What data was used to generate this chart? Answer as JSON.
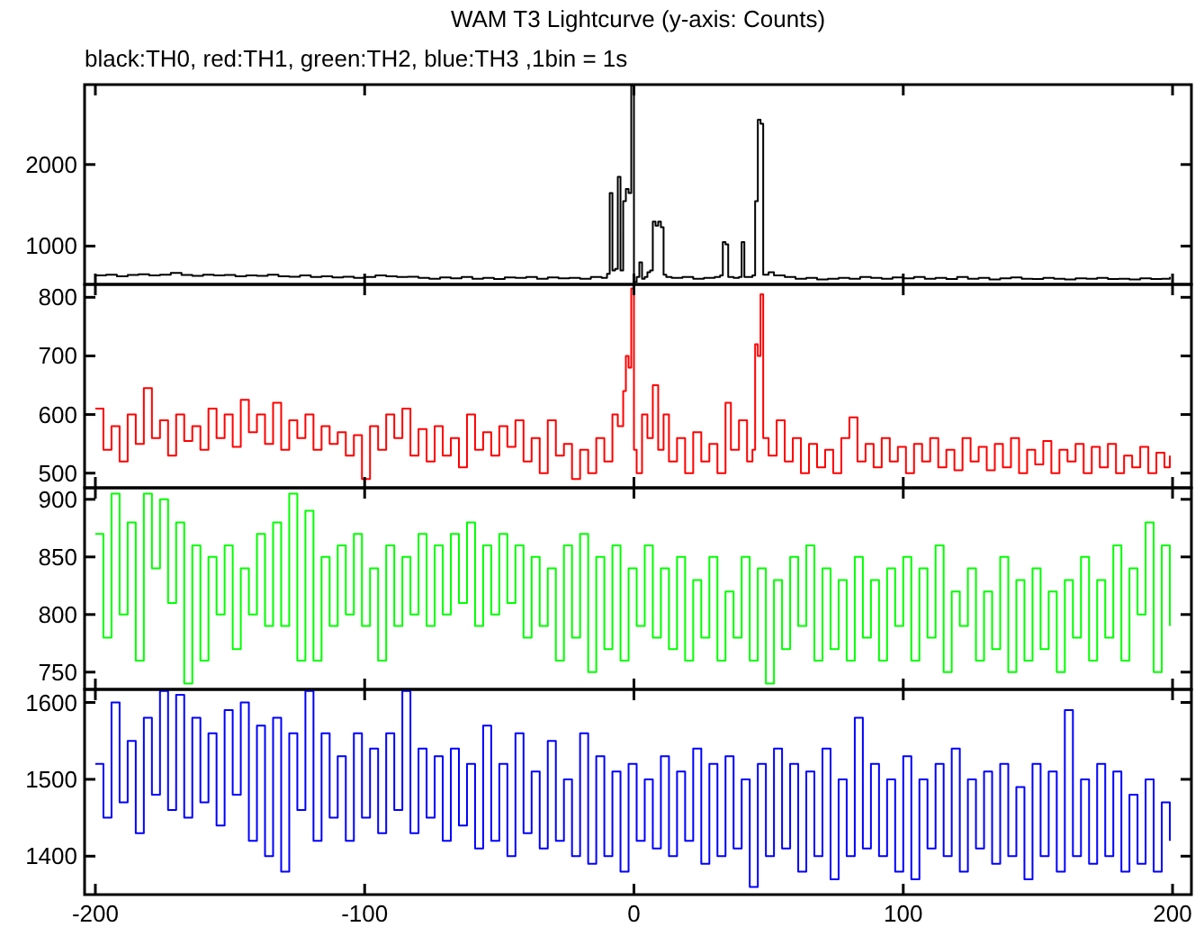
{
  "chart_data": [
    {
      "type": "step",
      "title": "WAM T3 Lightcurve (y-axis: Counts)",
      "subtitle": "black:TH0, red:TH1, green:TH2, blue:TH3 ,1bin = 1s",
      "xlim": [
        -204,
        207
      ],
      "ylim": [
        530,
        2980
      ],
      "xticks": [
        -200,
        -100,
        0,
        100,
        200
      ],
      "yticks": [
        1000,
        2000
      ],
      "tick_labels": "y",
      "x": [
        -200,
        -196,
        -192,
        -188,
        -184,
        -180,
        -176,
        -172,
        -168,
        -164,
        -160,
        -156,
        -152,
        -148,
        -144,
        -140,
        -136,
        -132,
        -128,
        -124,
        -120,
        -116,
        -112,
        -108,
        -104,
        -100,
        -96,
        -92,
        -88,
        -84,
        -80,
        -76,
        -72,
        -68,
        -64,
        -60,
        -56,
        -52,
        -48,
        -44,
        -40,
        -36,
        -32,
        -28,
        -24,
        -20,
        -16,
        -12,
        -10,
        -9,
        -8,
        -7,
        -6,
        -5,
        -4,
        -3,
        -2,
        -1,
        0,
        1,
        2,
        3,
        4,
        5,
        6,
        7,
        8,
        9,
        10,
        11,
        12,
        14,
        18,
        22,
        26,
        30,
        32,
        33,
        34,
        35,
        37,
        39,
        40,
        41,
        43,
        44,
        45,
        46,
        47,
        48,
        50,
        52,
        56,
        60,
        64,
        68,
        72,
        76,
        80,
        84,
        88,
        92,
        96,
        100,
        104,
        108,
        112,
        116,
        120,
        124,
        128,
        132,
        136,
        140,
        144,
        148,
        152,
        156,
        160,
        164,
        168,
        172,
        176,
        180,
        184,
        188,
        192,
        196,
        199
      ],
      "series": [
        {
          "color": "#000000",
          "values": [
            640,
            650,
            630,
            645,
            655,
            640,
            650,
            670,
            645,
            635,
            650,
            640,
            645,
            630,
            640,
            635,
            650,
            630,
            625,
            640,
            620,
            630,
            615,
            625,
            610,
            620,
            640,
            630,
            620,
            625,
            610,
            600,
            615,
            605,
            620,
            600,
            610,
            595,
            615,
            610,
            620,
            600,
            615,
            605,
            610,
            600,
            620,
            610,
            660,
            1650,
            700,
            720,
            1850,
            700,
            1550,
            1700,
            1650,
            2970,
            560,
            620,
            800,
            600,
            620,
            680,
            700,
            1300,
            1250,
            1300,
            1230,
            650,
            620,
            610,
            620,
            600,
            610,
            620,
            640,
            1050,
            1020,
            620,
            610,
            620,
            1050,
            620,
            620,
            640,
            1550,
            2550,
            2500,
            650,
            680,
            640,
            620,
            600,
            610,
            590,
            600,
            610,
            600,
            620,
            610,
            600,
            615,
            605,
            620,
            600,
            610,
            595,
            620,
            600,
            610,
            590,
            605,
            615,
            600,
            595,
            610,
            600,
            590,
            605,
            600,
            610,
            595,
            600,
            590,
            605,
            595,
            600,
            620
          ]
        }
      ]
    },
    {
      "type": "step",
      "xlim": [
        -204,
        207
      ],
      "ylim": [
        475,
        822
      ],
      "xticks": [
        -200,
        -100,
        0,
        100,
        200
      ],
      "yticks": [
        500,
        600,
        700,
        800
      ],
      "tick_labels": "y",
      "x": [
        -200,
        -197,
        -194,
        -191,
        -188,
        -185,
        -182,
        -179,
        -176,
        -173,
        -170,
        -167,
        -164,
        -161,
        -158,
        -155,
        -152,
        -149,
        -146,
        -143,
        -140,
        -137,
        -134,
        -131,
        -128,
        -125,
        -122,
        -119,
        -116,
        -113,
        -110,
        -107,
        -104,
        -101,
        -98,
        -95,
        -92,
        -89,
        -86,
        -83,
        -80,
        -77,
        -74,
        -71,
        -68,
        -65,
        -62,
        -59,
        -56,
        -53,
        -50,
        -47,
        -44,
        -41,
        -38,
        -35,
        -32,
        -29,
        -26,
        -23,
        -20,
        -17,
        -14,
        -11,
        -8,
        -6,
        -4,
        -3,
        -2,
        -1,
        0,
        1,
        3,
        5,
        7,
        9,
        11,
        13,
        16,
        19,
        22,
        25,
        28,
        31,
        34,
        36,
        39,
        42,
        44,
        45,
        46,
        47,
        48,
        50,
        53,
        56,
        59,
        62,
        65,
        68,
        71,
        74,
        77,
        80,
        83,
        86,
        89,
        92,
        95,
        98,
        101,
        104,
        107,
        110,
        113,
        116,
        119,
        122,
        125,
        128,
        131,
        134,
        137,
        140,
        143,
        146,
        149,
        152,
        155,
        158,
        161,
        164,
        167,
        170,
        173,
        176,
        179,
        182,
        185,
        188,
        191,
        194,
        197,
        199
      ],
      "series": [
        {
          "color": "#ff0000",
          "values": [
            610,
            540,
            580,
            520,
            600,
            550,
            645,
            560,
            590,
            530,
            600,
            555,
            580,
            540,
            610,
            560,
            600,
            545,
            625,
            570,
            600,
            550,
            620,
            540,
            590,
            560,
            600,
            540,
            580,
            550,
            570,
            530,
            565,
            490,
            580,
            540,
            600,
            560,
            610,
            530,
            575,
            520,
            580,
            530,
            560,
            510,
            600,
            540,
            570,
            530,
            580,
            545,
            590,
            520,
            560,
            500,
            590,
            530,
            550,
            490,
            540,
            500,
            560,
            520,
            600,
            580,
            640,
            700,
            680,
            815,
            540,
            500,
            600,
            560,
            650,
            540,
            600,
            520,
            560,
            500,
            570,
            520,
            550,
            500,
            620,
            540,
            590,
            520,
            540,
            720,
            700,
            805,
            560,
            530,
            590,
            520,
            560,
            500,
            550,
            510,
            540,
            500,
            560,
            595,
            520,
            550,
            510,
            560,
            520,
            545,
            500,
            550,
            520,
            560,
            510,
            540,
            505,
            560,
            520,
            545,
            505,
            550,
            510,
            560,
            500,
            540,
            515,
            555,
            500,
            540,
            520,
            550,
            500,
            545,
            510,
            550,
            500,
            530,
            510,
            545,
            500,
            535,
            510,
            530
          ]
        }
      ]
    },
    {
      "type": "step",
      "xlim": [
        -204,
        207
      ],
      "ylim": [
        735,
        910
      ],
      "xticks": [
        -200,
        -100,
        0,
        100,
        200
      ],
      "yticks": [
        750,
        800,
        850,
        900
      ],
      "tick_labels": "y",
      "x": [
        -200,
        -197,
        -194,
        -191,
        -188,
        -185,
        -182,
        -179,
        -176,
        -173,
        -170,
        -167,
        -164,
        -161,
        -158,
        -155,
        -152,
        -149,
        -146,
        -143,
        -140,
        -137,
        -134,
        -131,
        -128,
        -125,
        -122,
        -119,
        -116,
        -113,
        -110,
        -107,
        -104,
        -101,
        -98,
        -95,
        -92,
        -89,
        -86,
        -83,
        -80,
        -77,
        -74,
        -71,
        -68,
        -65,
        -62,
        -59,
        -56,
        -53,
        -50,
        -47,
        -44,
        -41,
        -38,
        -35,
        -32,
        -29,
        -26,
        -23,
        -20,
        -17,
        -14,
        -11,
        -8,
        -5,
        -2,
        1,
        4,
        7,
        10,
        13,
        16,
        19,
        22,
        25,
        28,
        31,
        34,
        37,
        40,
        43,
        46,
        49,
        52,
        55,
        58,
        61,
        64,
        67,
        70,
        73,
        76,
        79,
        82,
        85,
        88,
        91,
        94,
        97,
        100,
        103,
        106,
        109,
        112,
        115,
        118,
        121,
        124,
        127,
        130,
        133,
        136,
        139,
        142,
        145,
        148,
        151,
        154,
        157,
        160,
        163,
        166,
        169,
        172,
        175,
        178,
        181,
        184,
        187,
        190,
        193,
        196,
        199
      ],
      "series": [
        {
          "color": "#00ff00",
          "values": [
            870,
            780,
            905,
            800,
            880,
            760,
            905,
            840,
            900,
            810,
            880,
            740,
            860,
            760,
            850,
            800,
            860,
            770,
            840,
            800,
            870,
            790,
            880,
            790,
            905,
            760,
            890,
            760,
            850,
            790,
            860,
            800,
            870,
            790,
            840,
            760,
            860,
            790,
            850,
            800,
            870,
            790,
            860,
            800,
            870,
            810,
            880,
            790,
            860,
            800,
            870,
            810,
            860,
            780,
            850,
            790,
            840,
            760,
            860,
            780,
            870,
            750,
            850,
            770,
            860,
            760,
            840,
            790,
            860,
            780,
            840,
            770,
            850,
            760,
            830,
            780,
            850,
            760,
            820,
            780,
            850,
            760,
            840,
            740,
            830,
            770,
            850,
            790,
            860,
            760,
            840,
            770,
            830,
            760,
            850,
            780,
            830,
            760,
            840,
            790,
            850,
            760,
            840,
            780,
            860,
            750,
            820,
            790,
            840,
            760,
            820,
            770,
            850,
            750,
            830,
            760,
            840,
            770,
            820,
            750,
            830,
            780,
            850,
            760,
            830,
            780,
            860,
            760,
            840,
            800,
            880,
            750,
            860,
            790
          ]
        }
      ]
    },
    {
      "type": "step",
      "xlim": [
        -204,
        207
      ],
      "ylim": [
        1350,
        1617
      ],
      "xticks": [
        -200,
        -100,
        0,
        100,
        200
      ],
      "yticks": [
        1400,
        1500,
        1600
      ],
      "x": [
        -200,
        -197,
        -194,
        -191,
        -188,
        -185,
        -182,
        -179,
        -176,
        -173,
        -170,
        -167,
        -164,
        -161,
        -158,
        -155,
        -152,
        -149,
        -146,
        -143,
        -140,
        -137,
        -134,
        -131,
        -128,
        -125,
        -122,
        -119,
        -116,
        -113,
        -110,
        -107,
        -104,
        -101,
        -98,
        -95,
        -92,
        -89,
        -86,
        -83,
        -80,
        -77,
        -74,
        -71,
        -68,
        -65,
        -62,
        -59,
        -56,
        -53,
        -50,
        -47,
        -44,
        -41,
        -38,
        -35,
        -32,
        -29,
        -26,
        -23,
        -20,
        -17,
        -14,
        -11,
        -8,
        -5,
        -2,
        1,
        4,
        7,
        10,
        13,
        16,
        19,
        22,
        25,
        28,
        31,
        34,
        37,
        40,
        43,
        46,
        49,
        52,
        55,
        58,
        61,
        64,
        67,
        70,
        73,
        76,
        79,
        82,
        85,
        88,
        91,
        94,
        97,
        100,
        103,
        106,
        109,
        112,
        115,
        118,
        121,
        124,
        127,
        130,
        133,
        136,
        139,
        142,
        145,
        148,
        151,
        154,
        157,
        160,
        163,
        166,
        169,
        172,
        175,
        178,
        181,
        184,
        187,
        190,
        193,
        196,
        199
      ],
      "series": [
        {
          "color": "#0000ff",
          "values": [
            1520,
            1450,
            1600,
            1470,
            1550,
            1430,
            1580,
            1480,
            1615,
            1460,
            1610,
            1450,
            1580,
            1470,
            1560,
            1440,
            1590,
            1480,
            1600,
            1420,
            1570,
            1400,
            1580,
            1380,
            1560,
            1460,
            1615,
            1420,
            1560,
            1450,
            1530,
            1420,
            1560,
            1450,
            1540,
            1430,
            1560,
            1460,
            1615,
            1430,
            1540,
            1450,
            1530,
            1420,
            1540,
            1440,
            1520,
            1410,
            1570,
            1420,
            1520,
            1400,
            1560,
            1430,
            1510,
            1410,
            1550,
            1420,
            1500,
            1400,
            1560,
            1390,
            1530,
            1400,
            1510,
            1380,
            1520,
            1420,
            1500,
            1410,
            1530,
            1400,
            1510,
            1420,
            1540,
            1390,
            1520,
            1400,
            1530,
            1410,
            1500,
            1360,
            1520,
            1400,
            1540,
            1410,
            1520,
            1380,
            1510,
            1400,
            1540,
            1370,
            1500,
            1400,
            1580,
            1410,
            1520,
            1400,
            1500,
            1380,
            1530,
            1370,
            1500,
            1410,
            1520,
            1400,
            1540,
            1380,
            1500,
            1410,
            1510,
            1390,
            1520,
            1400,
            1490,
            1370,
            1520,
            1400,
            1510,
            1380,
            1590,
            1400,
            1500,
            1390,
            1520,
            1400,
            1510,
            1380,
            1480,
            1390,
            1500,
            1380,
            1470,
            1420
          ]
        }
      ]
    }
  ]
}
